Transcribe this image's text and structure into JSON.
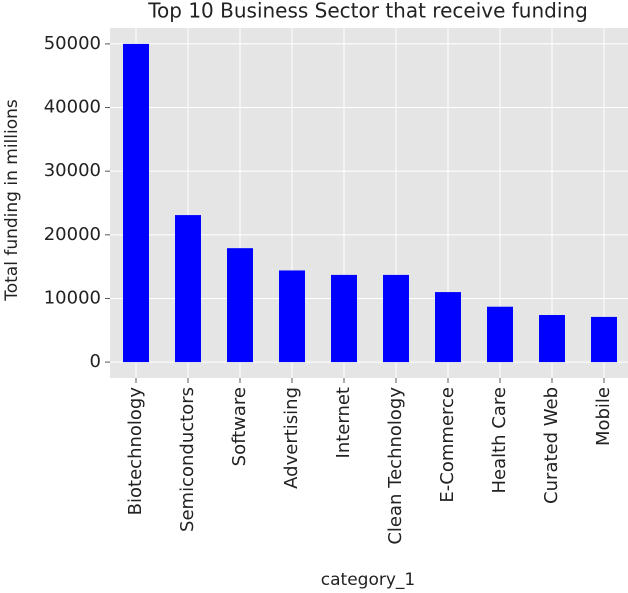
{
  "chart_data": {
    "type": "bar",
    "title": "Top 10 Business Sector that receive funding",
    "x_label": "category_1",
    "y_label": "Total funding in millions",
    "categories": [
      "Biotechnology",
      "Semiconductors",
      "Software",
      "Advertising",
      "Internet",
      "Clean Technology",
      "E-Commerce",
      "Health Care",
      "Curated Web",
      "Mobile"
    ],
    "values": [
      50000,
      23100,
      17900,
      14400,
      13700,
      13700,
      11000,
      8700,
      7400,
      7100
    ],
    "color": "#0000ff",
    "ylim": [
      -2500,
      52500
    ],
    "yticks": [
      0,
      10000,
      20000,
      30000,
      40000,
      50000
    ],
    "grid": true
  }
}
